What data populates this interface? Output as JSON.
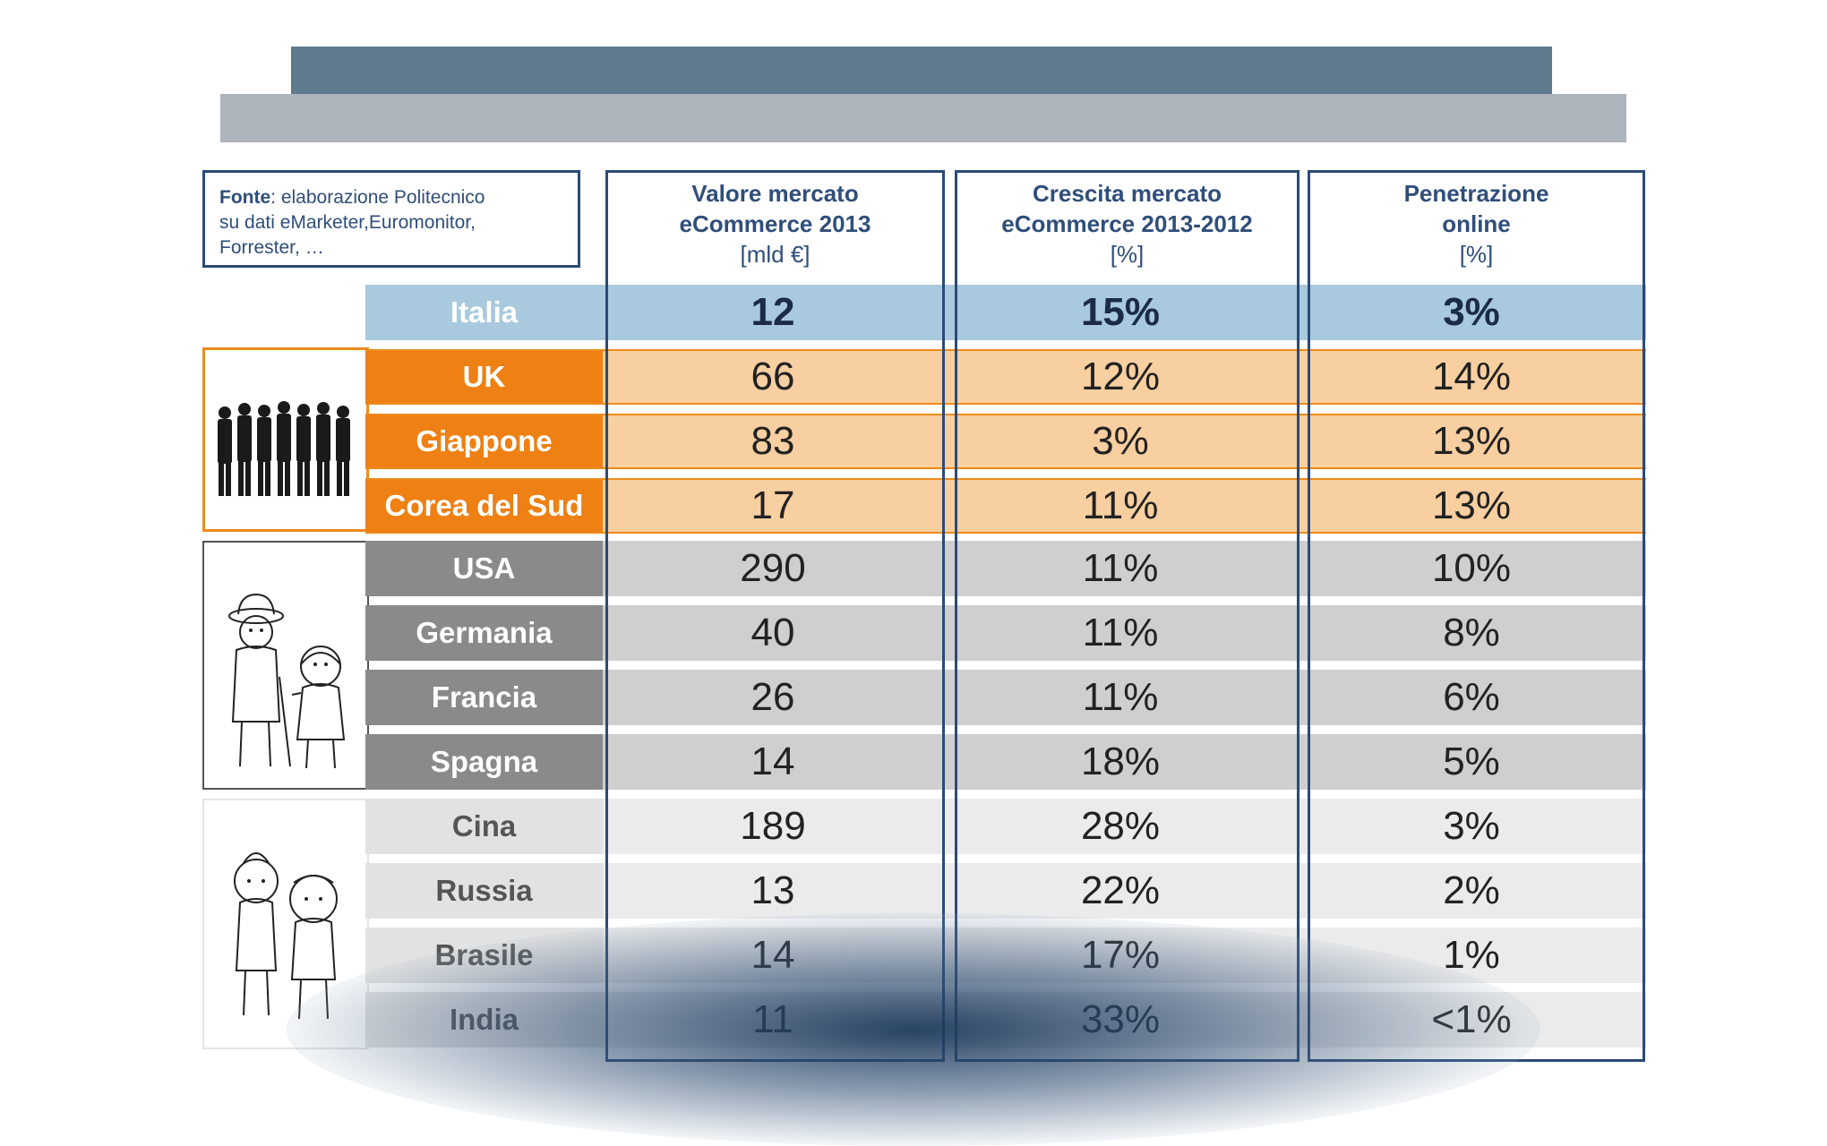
{
  "source": {
    "label": "Fonte",
    "text_line1": ": elaborazione Politecnico",
    "text_line2": "su dati eMarketer,Euromonitor,",
    "text_line3": "Forrester, …"
  },
  "columns": [
    {
      "line1": "Valore mercato",
      "line2": "eCommerce 2013",
      "unit": "[mld €]"
    },
    {
      "line1": "Crescita mercato",
      "line2": "eCommerce 2013-2012",
      "unit": "[%]"
    },
    {
      "line1": "Penetrazione",
      "line2": "online",
      "unit": "[%]"
    }
  ],
  "chart_data": {
    "type": "table",
    "columns": [
      "Valore mercato eCommerce 2013 [mld €]",
      "Crescita mercato eCommerce 2013-2012 [%]",
      "Penetrazione online [%]"
    ],
    "rows": [
      {
        "country": "Italia",
        "valore": "12",
        "crescita": "15%",
        "penetrazione": "3%"
      },
      {
        "country": "UK",
        "valore": "66",
        "crescita": "12%",
        "penetrazione": "14%"
      },
      {
        "country": "Giappone",
        "valore": "83",
        "crescita": "3%",
        "penetrazione": "13%"
      },
      {
        "country": "Corea del Sud",
        "valore": "17",
        "crescita": "11%",
        "penetrazione": "13%"
      },
      {
        "country": "USA",
        "valore": "290",
        "crescita": "11%",
        "penetrazione": "10%"
      },
      {
        "country": "Germania",
        "valore": "40",
        "crescita": "11%",
        "penetrazione": "8%"
      },
      {
        "country": "Francia",
        "valore": "26",
        "crescita": "11%",
        "penetrazione": "6%"
      },
      {
        "country": "Spagna",
        "valore": "14",
        "crescita": "18%",
        "penetrazione": "5%"
      },
      {
        "country": "Cina",
        "valore": "189",
        "crescita": "28%",
        "penetrazione": "3%"
      },
      {
        "country": "Russia",
        "valore": "13",
        "crescita": "22%",
        "penetrazione": "2%"
      },
      {
        "country": "Brasile",
        "valore": "14",
        "crescita": "17%",
        "penetrazione": "1%"
      },
      {
        "country": "India",
        "valore": "11",
        "crescita": "33%",
        "penetrazione": "<1%"
      }
    ]
  },
  "colors": {
    "header_band": "#5f7a8c",
    "sub_band": "#aeb4bb",
    "italia": "#a8c9de",
    "orange": "#ee8014",
    "orange_light": "#f8cfa0",
    "grey_dark": "#8a8a8a",
    "grey_mid": "#cfcfcf",
    "grey_light": "#ebebeb",
    "border": "#2b4a78"
  },
  "icons": [
    "businessmen-group-icon",
    "elderly-couple-icon",
    "children-icon"
  ]
}
